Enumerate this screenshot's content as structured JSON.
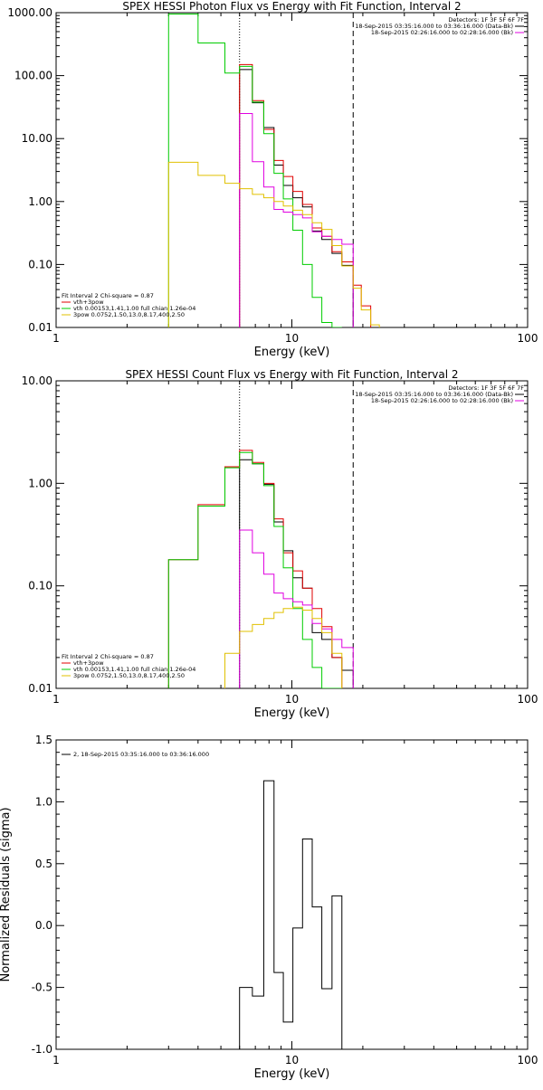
{
  "chart_data": [
    {
      "type": "line",
      "title": "SPEX HESSI Photon Flux vs Energy with Fit Function, Interval 2",
      "xlabel": "Energy (keV)",
      "ylabel": "",
      "xscale": "log",
      "yscale": "log",
      "xlim": [
        1,
        100
      ],
      "ylim": [
        0.01,
        1000
      ],
      "x_ticks": [
        "1",
        "10",
        "100"
      ],
      "y_ticks": [
        "0.01",
        "0.10",
        "1.00",
        "10.00",
        "100.00",
        "1000.00"
      ],
      "header": [
        {
          "text": "Detectors: 1F 3F 5F 6F 7F",
          "color": ""
        },
        {
          "text": "18-Sep-2015 03:35:16.000 to 03:36:16.000 (Data-Bk)",
          "color": "#000000"
        },
        {
          "text": "18-Sep-2015 02:26:16.000 to 02:28:16.000 (Bk)",
          "color": "#e000e0"
        }
      ],
      "legend": [
        {
          "text": "Fit Interval  2    Chi-square = 0.87",
          "color": ""
        },
        {
          "text": "vth+3pow",
          "color": "#e00000"
        },
        {
          "text": "vth 0.00153,1.41,1.00  full chian 1.26e-04",
          "color": "#00cc00"
        },
        {
          "text": "3pow 0.0752,1.50,13.0,8.17,400,2.50",
          "color": "#e0c000"
        }
      ],
      "vlines": [
        {
          "x": 6.0,
          "style": "dotted",
          "color": "#000000"
        },
        {
          "x": 18.2,
          "style": "dashed",
          "color": "#000000"
        }
      ],
      "series": [
        {
          "name": "data",
          "color": "#000000",
          "edges": [
            6,
            6.8,
            7.6,
            8.4,
            9.2,
            10.1,
            11.1,
            12.2,
            13.4,
            14.8,
            16.3,
            18.2
          ],
          "values": [
            125,
            37,
            15,
            3.8,
            1.8,
            1.15,
            0.82,
            0.34,
            0.25,
            0.15,
            0.097
          ]
        },
        {
          "name": "vth+3pow",
          "color": "#e00000",
          "edges": [
            6,
            6.8,
            7.6,
            8.4,
            9.2,
            10.1,
            11.1,
            12.2,
            13.4,
            14.8,
            16.3,
            18.2,
            19.7,
            21.6
          ],
          "values": [
            150,
            40,
            14,
            4.5,
            2.5,
            1.45,
            0.9,
            0.38,
            0.28,
            0.16,
            0.11,
            0.047,
            0.022
          ]
        },
        {
          "name": "vth",
          "color": "#00cc00",
          "edges": [
            3,
            4,
            5.2,
            6,
            6.8,
            7.6,
            8.4,
            9.2,
            10.1,
            11.1,
            12.2,
            13.4,
            14.8,
            16.3
          ],
          "values": [
            950,
            330,
            110,
            140,
            38,
            12,
            2.8,
            1.1,
            0.35,
            0.1,
            0.03,
            0.012,
            0.008
          ]
        },
        {
          "name": "bk",
          "color": "#e000e0",
          "edges": [
            6,
            6.8,
            7.6,
            8.4,
            9.2,
            10.1,
            11.1,
            12.2,
            13.4,
            14.8,
            16.3,
            18.2
          ],
          "values": [
            25,
            4.3,
            1.7,
            0.75,
            0.68,
            0.62,
            0.55,
            0.33,
            0.28,
            0.25,
            0.21
          ]
        },
        {
          "name": "3pow",
          "color": "#e0c000",
          "edges": [
            3,
            4,
            5.2,
            6,
            6.8,
            7.6,
            8.4,
            9.2,
            10.1,
            11.1,
            12.2,
            13.4,
            14.8,
            16.3,
            18.2,
            19.7,
            21.6,
            23.5
          ],
          "values": [
            4.2,
            2.6,
            1.95,
            1.6,
            1.3,
            1.15,
            1.0,
            0.85,
            0.73,
            0.62,
            0.46,
            0.36,
            0.2,
            0.095,
            0.042,
            0.019,
            0.011
          ]
        }
      ]
    },
    {
      "type": "line",
      "title": "SPEX HESSI Count Flux vs Energy with Fit Function, Interval 2",
      "xlabel": "Energy (keV)",
      "ylabel": "",
      "xscale": "log",
      "yscale": "log",
      "xlim": [
        1,
        100
      ],
      "ylim": [
        0.01,
        10
      ],
      "x_ticks": [
        "1",
        "10",
        "100"
      ],
      "y_ticks": [
        "0.01",
        "0.10",
        "1.00",
        "10.00"
      ],
      "header": [
        {
          "text": "Detectors: 1F 3F 5F 6F 7F",
          "color": ""
        },
        {
          "text": "18-Sep-2015 03:35:16.000 to 03:36:16.000 (Data-Bk)",
          "color": "#000000"
        },
        {
          "text": "18-Sep-2015 02:26:16.000 to 02:28:16.000 (Bk)",
          "color": "#e000e0"
        }
      ],
      "legend": [
        {
          "text": "Fit Interval  2    Chi-square = 0.87",
          "color": ""
        },
        {
          "text": "vth+3pow",
          "color": "#e00000"
        },
        {
          "text": "vth 0.00153,1.41,1.00  full chian 1.26e-04",
          "color": "#00cc00"
        },
        {
          "text": "3pow 0.0752,1.50,13.0,8.17,400,2.50",
          "color": "#e0c000"
        }
      ],
      "vlines": [
        {
          "x": 6.0,
          "style": "dotted",
          "color": "#000000"
        },
        {
          "x": 18.2,
          "style": "dashed",
          "color": "#000000"
        }
      ],
      "series": [
        {
          "name": "data",
          "color": "#000000",
          "edges": [
            6,
            6.8,
            7.6,
            8.4,
            9.2,
            10.1,
            11.1,
            12.2,
            13.4,
            14.8,
            16.3,
            18.2
          ],
          "values": [
            1.7,
            1.55,
            0.98,
            0.42,
            0.22,
            0.12,
            0.095,
            0.035,
            0.03,
            0.02,
            0.015
          ]
        },
        {
          "name": "vth+3pow",
          "color": "#e00000",
          "edges": [
            3,
            4,
            5.2,
            6,
            6.8,
            7.6,
            8.4,
            9.2,
            10.1,
            11.1,
            12.2,
            13.4,
            14.8,
            16.3
          ],
          "values": [
            0.18,
            0.62,
            1.45,
            2.1,
            1.6,
            1.0,
            0.45,
            0.21,
            0.14,
            0.095,
            0.06,
            0.04,
            0.02
          ]
        },
        {
          "name": "vth",
          "color": "#00cc00",
          "edges": [
            3,
            4,
            5.2,
            6,
            6.8,
            7.6,
            8.4,
            9.2,
            10.1,
            11.1,
            12.2,
            13.4,
            14.8,
            16.3
          ],
          "values": [
            0.18,
            0.6,
            1.42,
            2.0,
            1.55,
            0.95,
            0.38,
            0.15,
            0.06,
            0.03,
            0.016,
            0.01,
            0.008
          ]
        },
        {
          "name": "bk",
          "color": "#e000e0",
          "edges": [
            6,
            6.8,
            7.6,
            8.4,
            9.2,
            10.1,
            11.1,
            12.2,
            13.4,
            14.8,
            16.3,
            18.2
          ],
          "values": [
            0.35,
            0.21,
            0.13,
            0.085,
            0.075,
            0.07,
            0.065,
            0.043,
            0.038,
            0.03,
            0.025
          ]
        },
        {
          "name": "3pow",
          "color": "#e0c000",
          "edges": [
            5.2,
            6,
            6.8,
            7.6,
            8.4,
            9.2,
            10.1,
            11.1,
            12.2,
            13.4,
            14.8,
            16.3
          ],
          "values": [
            0.022,
            0.036,
            0.042,
            0.048,
            0.055,
            0.06,
            0.062,
            0.058,
            0.048,
            0.035,
            0.022
          ]
        }
      ]
    },
    {
      "type": "line",
      "title": "",
      "xlabel": "Energy (keV)",
      "ylabel": "Normalized Residuals (sigma)",
      "xscale": "log",
      "yscale": "linear",
      "xlim": [
        1,
        100
      ],
      "ylim": [
        -1.0,
        1.5
      ],
      "x_ticks": [
        "1",
        "10",
        "100"
      ],
      "y_ticks": [
        "-1.0",
        "-0.5",
        "0.0",
        "0.5",
        "1.0",
        "1.5"
      ],
      "legend": [
        {
          "text": "2, 18-Sep-2015 03:35:16.000 to 03:36:16.000",
          "color": "#000000"
        }
      ],
      "series": [
        {
          "name": "residuals",
          "color": "#000000",
          "edges": [
            6,
            6.8,
            7.6,
            8.4,
            9.2,
            10.1,
            11.1,
            12.2,
            13.4,
            14.8,
            16.3,
            18.2
          ],
          "values": [
            -0.5,
            -0.57,
            1.17,
            -0.38,
            -0.78,
            -0.02,
            0.7,
            0.15,
            -0.51,
            0.24,
            -1.1
          ]
        }
      ]
    }
  ]
}
